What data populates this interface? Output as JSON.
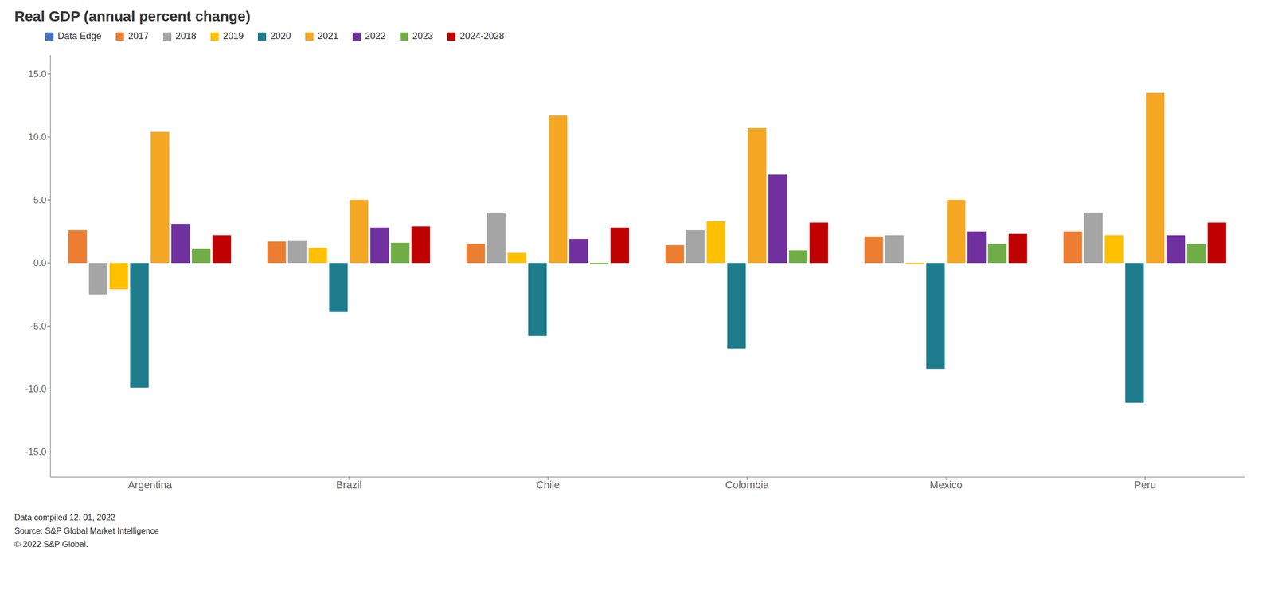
{
  "chart_data": {
    "type": "bar",
    "title": "Real GDP (annual percent change)",
    "categories": [
      "Argentina",
      "Brazil",
      "Chile",
      "Colombia",
      "Mexico",
      "Peru"
    ],
    "series": [
      {
        "name": "Data Edge",
        "color": "#4472C4",
        "values": [
          null,
          null,
          null,
          null,
          null,
          null
        ]
      },
      {
        "name": "2017",
        "color": "#ED7D31",
        "values": [
          2.6,
          1.7,
          1.5,
          1.4,
          2.1,
          2.5
        ]
      },
      {
        "name": "2018",
        "color": "#A5A5A5",
        "values": [
          -2.5,
          1.8,
          4.0,
          2.6,
          2.2,
          4.0
        ]
      },
      {
        "name": "2019",
        "color": "#FFC000",
        "values": [
          -2.1,
          1.2,
          0.8,
          3.3,
          -0.1,
          2.2
        ]
      },
      {
        "name": "2020",
        "color": "#1F7C8C",
        "values": [
          -9.9,
          -3.9,
          -5.8,
          -6.8,
          -8.4,
          -11.1
        ]
      },
      {
        "name": "2021",
        "color": "#F5A623",
        "values": [
          10.4,
          5.0,
          11.7,
          10.7,
          5.0,
          13.5
        ]
      },
      {
        "name": "2022",
        "color": "#7030A0",
        "values": [
          3.1,
          2.8,
          1.9,
          7.0,
          2.5,
          2.2
        ]
      },
      {
        "name": "2023",
        "color": "#70AD47",
        "values": [
          1.1,
          1.6,
          -0.1,
          1.0,
          1.5,
          1.5
        ]
      },
      {
        "name": "2024-2028",
        "color": "#C00000",
        "values": [
          2.2,
          2.9,
          2.8,
          3.2,
          2.3,
          3.2
        ]
      }
    ],
    "ylim": [
      -17.0,
      16.5
    ],
    "yticks": [
      {
        "value": -15.0,
        "label": "-15.0"
      },
      {
        "value": -10.0,
        "label": "-10.0"
      },
      {
        "value": -5.0,
        "label": "-5.0"
      },
      {
        "value": 0.0,
        "label": "0.0"
      },
      {
        "value": 5.0,
        "label": "5.0"
      },
      {
        "value": 10.0,
        "label": "10.0"
      },
      {
        "value": 15.0,
        "label": "15.0"
      }
    ],
    "grid": false,
    "legend": "top",
    "annotations": [
      "Data compiled 12. 01, 2022",
      "Source: S&P Global Market Intelligence",
      "© 2022 S&P Global."
    ]
  }
}
